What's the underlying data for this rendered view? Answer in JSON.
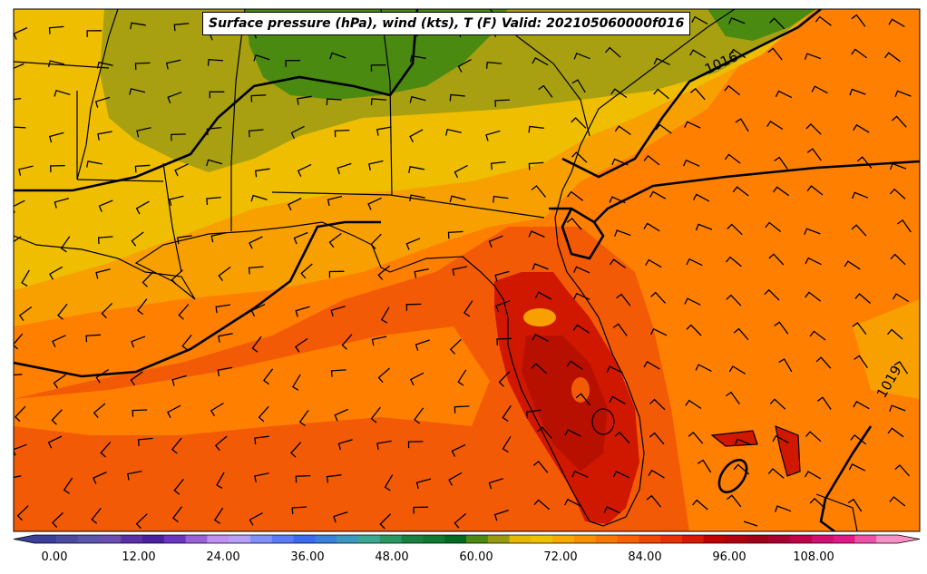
{
  "title": "Surface pressure (hPa), wind (kts), T (F) Valid: 202105060000f016",
  "isobar_labels": [
    "1016",
    "1019"
  ],
  "colorbar": {
    "ticks": [
      "0.00",
      "12.00",
      "24.00",
      "36.00",
      "48.00",
      "60.00",
      "72.00",
      "84.00",
      "96.00",
      "108.00"
    ],
    "colors": [
      "#3a3f9a",
      "#4b4aa0",
      "#5a55a8",
      "#6a4fb0",
      "#5a2fa8",
      "#4a20a0",
      "#6a35c0",
      "#9a60d8",
      "#c090f0",
      "#b8a0f8",
      "#8090f8",
      "#5a7af8",
      "#3a6af0",
      "#3a80d8",
      "#3a98c0",
      "#3aa890",
      "#2a9860",
      "#1a8040",
      "#107830",
      "#006a20",
      "#4a8a10",
      "#9a9a10",
      "#e8b800",
      "#f0c000",
      "#f8a800",
      "#f89000",
      "#f87800",
      "#f86000",
      "#f04800",
      "#e83000",
      "#d81800",
      "#c00000",
      "#b00010",
      "#a00018",
      "#a80030",
      "#c00048",
      "#d01070",
      "#e01888",
      "#f050a8",
      "#f890c8"
    ]
  },
  "colors": {
    "warm_red": "#d01800",
    "deep_orange": "#f35a05",
    "orange": "#ff7f00",
    "light_orange": "#f8a000",
    "gold": "#efbe00",
    "olive": "#a8a010",
    "green": "#4a8a10"
  }
}
